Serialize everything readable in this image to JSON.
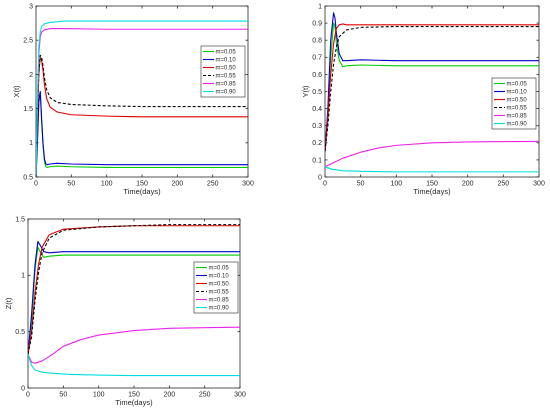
{
  "chart_data": [
    {
      "type": "line",
      "xlabel": "Time(days)",
      "ylabel": "X(t)",
      "xlim": [
        0,
        300
      ],
      "ylim": [
        0.5,
        3
      ],
      "xticks": [
        0,
        50,
        100,
        150,
        200,
        250,
        300
      ],
      "yticks": [
        0.5,
        1,
        1.5,
        2,
        2.5,
        3
      ],
      "legend_position": "right-middle",
      "series": [
        {
          "name": "m=0.05",
          "color": "#00cc00",
          "dash": "solid",
          "points": [
            [
              0,
              0.5
            ],
            [
              2,
              1.0
            ],
            [
              4,
              1.6
            ],
            [
              6,
              1.75
            ],
            [
              8,
              1.3
            ],
            [
              10,
              0.95
            ],
            [
              12,
              0.72
            ],
            [
              14,
              0.65
            ],
            [
              16,
              0.64
            ],
            [
              20,
              0.65
            ],
            [
              30,
              0.66
            ],
            [
              50,
              0.65
            ],
            [
              100,
              0.64
            ],
            [
              150,
              0.64
            ],
            [
              200,
              0.64
            ],
            [
              250,
              0.64
            ],
            [
              300,
              0.64
            ]
          ]
        },
        {
          "name": "m=0.10",
          "color": "#0000cc",
          "dash": "solid",
          "points": [
            [
              0,
              0.5
            ],
            [
              2,
              1.0
            ],
            [
              4,
              1.6
            ],
            [
              6,
              1.75
            ],
            [
              8,
              1.35
            ],
            [
              10,
              0.98
            ],
            [
              12,
              0.76
            ],
            [
              14,
              0.69
            ],
            [
              16,
              0.68
            ],
            [
              20,
              0.69
            ],
            [
              30,
              0.7
            ],
            [
              50,
              0.69
            ],
            [
              100,
              0.68
            ],
            [
              150,
              0.68
            ],
            [
              200,
              0.68
            ],
            [
              250,
              0.68
            ],
            [
              300,
              0.68
            ]
          ]
        },
        {
          "name": "m=0.50",
          "color": "#dd0000",
          "dash": "solid",
          "points": [
            [
              0,
              0.5
            ],
            [
              2,
              1.3
            ],
            [
              4,
              2.0
            ],
            [
              6,
              2.25
            ],
            [
              8,
              2.2
            ],
            [
              10,
              2.05
            ],
            [
              12,
              1.85
            ],
            [
              15,
              1.65
            ],
            [
              20,
              1.52
            ],
            [
              30,
              1.45
            ],
            [
              50,
              1.41
            ],
            [
              100,
              1.39
            ],
            [
              150,
              1.38
            ],
            [
              200,
              1.38
            ],
            [
              250,
              1.38
            ],
            [
              300,
              1.38
            ]
          ]
        },
        {
          "name": "m=0.55",
          "color": "#000000",
          "dash": "3,2",
          "points": [
            [
              0,
              0.5
            ],
            [
              2,
              1.3
            ],
            [
              4,
              2.05
            ],
            [
              6,
              2.28
            ],
            [
              8,
              2.25
            ],
            [
              10,
              2.12
            ],
            [
              12,
              1.95
            ],
            [
              15,
              1.78
            ],
            [
              20,
              1.66
            ],
            [
              30,
              1.59
            ],
            [
              50,
              1.56
            ],
            [
              100,
              1.54
            ],
            [
              150,
              1.53
            ],
            [
              200,
              1.53
            ],
            [
              250,
              1.53
            ],
            [
              300,
              1.53
            ]
          ]
        },
        {
          "name": "m=0.85",
          "color": "#ee22ee",
          "dash": "solid",
          "points": [
            [
              0,
              0.5
            ],
            [
              2,
              1.5
            ],
            [
              4,
              2.3
            ],
            [
              6,
              2.55
            ],
            [
              8,
              2.62
            ],
            [
              12,
              2.65
            ],
            [
              20,
              2.67
            ],
            [
              40,
              2.67
            ],
            [
              100,
              2.66
            ],
            [
              150,
              2.66
            ],
            [
              200,
              2.66
            ],
            [
              250,
              2.66
            ],
            [
              300,
              2.66
            ]
          ]
        },
        {
          "name": "m=0.90",
          "color": "#00dddd",
          "dash": "solid",
          "points": [
            [
              0,
              0.5
            ],
            [
              2,
              1.6
            ],
            [
              4,
              2.4
            ],
            [
              6,
              2.62
            ],
            [
              8,
              2.7
            ],
            [
              12,
              2.74
            ],
            [
              20,
              2.76
            ],
            [
              40,
              2.78
            ],
            [
              100,
              2.78
            ],
            [
              150,
              2.78
            ],
            [
              200,
              2.78
            ],
            [
              250,
              2.78
            ],
            [
              300,
              2.78
            ]
          ]
        }
      ]
    },
    {
      "type": "line",
      "xlabel": "Time(days)",
      "ylabel": "Y(t)",
      "xlim": [
        0,
        300
      ],
      "ylim": [
        0,
        1
      ],
      "xticks": [
        0,
        50,
        100,
        150,
        200,
        250,
        300
      ],
      "yticks": [
        0,
        0.1,
        0.2,
        0.3,
        0.4,
        0.5,
        0.6,
        0.7,
        0.8,
        0.9,
        1
      ],
      "legend_position": "right-middle",
      "series": [
        {
          "name": "m=0.05",
          "color": "#00cc00",
          "dash": "solid",
          "points": [
            [
              0,
              0.15
            ],
            [
              4,
              0.35
            ],
            [
              8,
              0.7
            ],
            [
              12,
              0.9
            ],
            [
              14,
              0.88
            ],
            [
              16,
              0.78
            ],
            [
              20,
              0.68
            ],
            [
              25,
              0.645
            ],
            [
              30,
              0.65
            ],
            [
              50,
              0.655
            ],
            [
              100,
              0.65
            ],
            [
              150,
              0.65
            ],
            [
              200,
              0.65
            ],
            [
              250,
              0.65
            ],
            [
              300,
              0.65
            ]
          ]
        },
        {
          "name": "m=0.10",
          "color": "#0000cc",
          "dash": "solid",
          "points": [
            [
              0,
              0.15
            ],
            [
              4,
              0.4
            ],
            [
              8,
              0.8
            ],
            [
              12,
              0.96
            ],
            [
              14,
              0.93
            ],
            [
              16,
              0.84
            ],
            [
              20,
              0.72
            ],
            [
              25,
              0.68
            ],
            [
              30,
              0.68
            ],
            [
              50,
              0.685
            ],
            [
              100,
              0.68
            ],
            [
              150,
              0.68
            ],
            [
              200,
              0.68
            ],
            [
              250,
              0.68
            ],
            [
              300,
              0.68
            ]
          ]
        },
        {
          "name": "m=0.50",
          "color": "#dd0000",
          "dash": "solid",
          "points": [
            [
              0,
              0.15
            ],
            [
              4,
              0.35
            ],
            [
              8,
              0.6
            ],
            [
              12,
              0.78
            ],
            [
              16,
              0.87
            ],
            [
              20,
              0.89
            ],
            [
              25,
              0.895
            ],
            [
              30,
              0.89
            ],
            [
              50,
              0.89
            ],
            [
              100,
              0.89
            ],
            [
              150,
              0.89
            ],
            [
              200,
              0.89
            ],
            [
              250,
              0.89
            ],
            [
              300,
              0.89
            ]
          ]
        },
        {
          "name": "m=0.55",
          "color": "#000000",
          "dash": "3,2",
          "points": [
            [
              0,
              0.15
            ],
            [
              4,
              0.3
            ],
            [
              8,
              0.5
            ],
            [
              12,
              0.66
            ],
            [
              16,
              0.76
            ],
            [
              20,
              0.82
            ],
            [
              30,
              0.86
            ],
            [
              50,
              0.875
            ],
            [
              100,
              0.88
            ],
            [
              150,
              0.88
            ],
            [
              200,
              0.88
            ],
            [
              250,
              0.88
            ],
            [
              300,
              0.88
            ]
          ]
        },
        {
          "name": "m=0.85",
          "color": "#ee22ee",
          "dash": "solid",
          "points": [
            [
              0,
              0.06
            ],
            [
              10,
              0.08
            ],
            [
              25,
              0.11
            ],
            [
              50,
              0.145
            ],
            [
              75,
              0.17
            ],
            [
              100,
              0.185
            ],
            [
              150,
              0.2
            ],
            [
              200,
              0.205
            ],
            [
              250,
              0.207
            ],
            [
              300,
              0.208
            ]
          ]
        },
        {
          "name": "m=0.90",
          "color": "#00dddd",
          "dash": "solid",
          "points": [
            [
              0,
              0.06
            ],
            [
              10,
              0.045
            ],
            [
              25,
              0.037
            ],
            [
              50,
              0.033
            ],
            [
              100,
              0.03
            ],
            [
              150,
              0.03
            ],
            [
              200,
              0.03
            ],
            [
              250,
              0.03
            ],
            [
              300,
              0.03
            ]
          ]
        }
      ]
    },
    {
      "type": "line",
      "xlabel": "Time(days)",
      "ylabel": "Z(t)",
      "xlim": [
        0,
        300
      ],
      "ylim": [
        0,
        1.5
      ],
      "xticks": [
        0,
        50,
        100,
        150,
        200,
        250,
        300
      ],
      "yticks": [
        0,
        0.5,
        1,
        1.5
      ],
      "legend_position": "right-middle",
      "series": [
        {
          "name": "m=0.05",
          "color": "#00cc00",
          "dash": "solid",
          "points": [
            [
              0,
              0.3
            ],
            [
              5,
              0.6
            ],
            [
              10,
              1.05
            ],
            [
              14,
              1.25
            ],
            [
              18,
              1.2
            ],
            [
              22,
              1.16
            ],
            [
              30,
              1.17
            ],
            [
              50,
              1.18
            ],
            [
              100,
              1.18
            ],
            [
              150,
              1.18
            ],
            [
              200,
              1.18
            ],
            [
              250,
              1.18
            ],
            [
              300,
              1.18
            ]
          ]
        },
        {
          "name": "m=0.10",
          "color": "#0000cc",
          "dash": "solid",
          "points": [
            [
              0,
              0.3
            ],
            [
              5,
              0.65
            ],
            [
              10,
              1.1
            ],
            [
              14,
              1.3
            ],
            [
              18,
              1.26
            ],
            [
              22,
              1.21
            ],
            [
              30,
              1.2
            ],
            [
              50,
              1.21
            ],
            [
              100,
              1.21
            ],
            [
              150,
              1.21
            ],
            [
              200,
              1.21
            ],
            [
              250,
              1.21
            ],
            [
              300,
              1.21
            ]
          ]
        },
        {
          "name": "m=0.50",
          "color": "#dd0000",
          "dash": "solid",
          "points": [
            [
              0,
              0.3
            ],
            [
              5,
              0.5
            ],
            [
              10,
              0.85
            ],
            [
              15,
              1.1
            ],
            [
              20,
              1.25
            ],
            [
              30,
              1.36
            ],
            [
              50,
              1.41
            ],
            [
              100,
              1.43
            ],
            [
              150,
              1.44
            ],
            [
              200,
              1.44
            ],
            [
              250,
              1.44
            ],
            [
              300,
              1.44
            ]
          ]
        },
        {
          "name": "m=0.55",
          "color": "#000000",
          "dash": "3,2",
          "points": [
            [
              0,
              0.3
            ],
            [
              5,
              0.45
            ],
            [
              10,
              0.78
            ],
            [
              15,
              1.03
            ],
            [
              20,
              1.2
            ],
            [
              30,
              1.33
            ],
            [
              50,
              1.4
            ],
            [
              100,
              1.43
            ],
            [
              150,
              1.44
            ],
            [
              200,
              1.45
            ],
            [
              250,
              1.45
            ],
            [
              300,
              1.45
            ]
          ]
        },
        {
          "name": "m=0.85",
          "color": "#ee22ee",
          "dash": "solid",
          "points": [
            [
              0,
              0.3
            ],
            [
              5,
              0.23
            ],
            [
              10,
              0.22
            ],
            [
              20,
              0.24
            ],
            [
              35,
              0.3
            ],
            [
              50,
              0.37
            ],
            [
              75,
              0.43
            ],
            [
              100,
              0.47
            ],
            [
              150,
              0.51
            ],
            [
              200,
              0.53
            ],
            [
              250,
              0.535
            ],
            [
              300,
              0.54
            ]
          ]
        },
        {
          "name": "m=0.90",
          "color": "#00dddd",
          "dash": "solid",
          "points": [
            [
              0,
              0.3
            ],
            [
              5,
              0.2
            ],
            [
              10,
              0.16
            ],
            [
              20,
              0.14
            ],
            [
              35,
              0.13
            ],
            [
              60,
              0.12
            ],
            [
              100,
              0.115
            ],
            [
              150,
              0.11
            ],
            [
              200,
              0.11
            ],
            [
              250,
              0.11
            ],
            [
              300,
              0.11
            ]
          ]
        }
      ]
    }
  ]
}
